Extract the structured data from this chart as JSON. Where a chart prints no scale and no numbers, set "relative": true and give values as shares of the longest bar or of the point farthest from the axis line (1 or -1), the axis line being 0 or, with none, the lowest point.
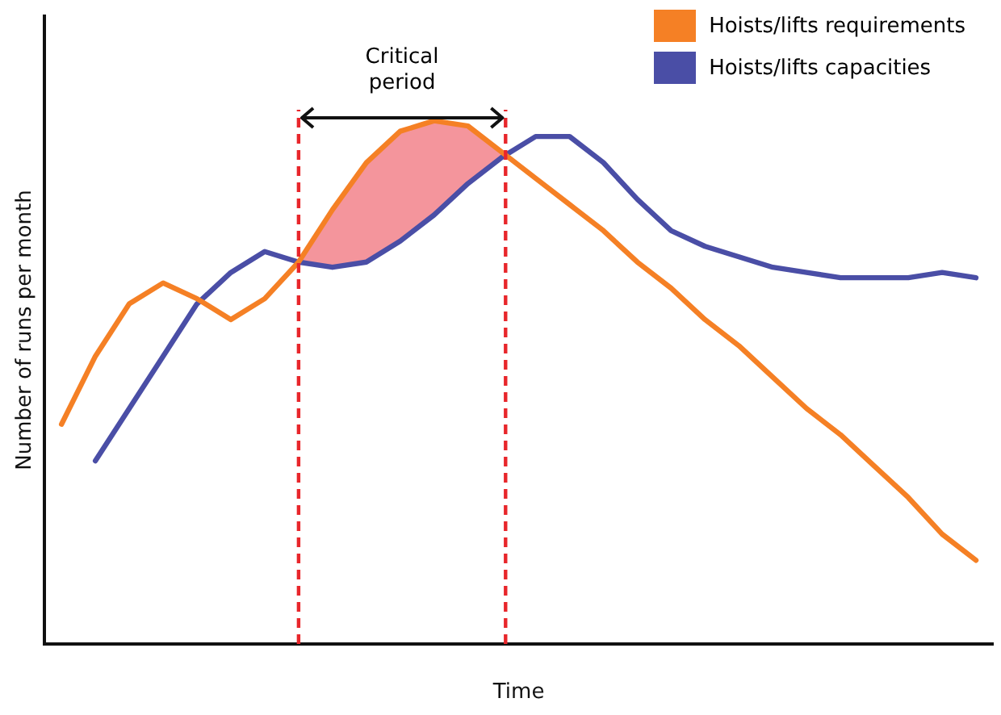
{
  "chart_data": {
    "type": "line",
    "relative": true,
    "xlabel": "Time",
    "ylabel": "Number of runs per month",
    "grid": false,
    "legend": "top right",
    "marker": "none",
    "line_style": "solid",
    "categories": [
      null,
      null,
      null,
      null,
      null,
      null,
      null,
      null,
      null,
      null,
      null,
      null,
      null,
      null,
      null,
      null,
      null,
      null,
      null,
      null,
      null,
      null,
      null,
      null,
      null,
      null,
      null,
      null
    ],
    "series": [
      {
        "name": "Hoists/lifts requirements",
        "color": "#f58025",
        "values": [
          0.42,
          0.55,
          0.65,
          0.69,
          0.66,
          0.62,
          0.66,
          0.73,
          0.83,
          0.92,
          0.98,
          1,
          0.99,
          0.94,
          0.89,
          0.84,
          0.79,
          0.73,
          0.68,
          0.62,
          0.57,
          0.51,
          0.45,
          0.4,
          0.34,
          0.28,
          0.21,
          0.16
        ]
      },
      {
        "name": "Hoists/lifts capacities",
        "color": "#4a4ea6",
        "values": [
          null,
          0.35,
          0.45,
          0.55,
          0.65,
          0.71,
          0.75,
          0.73,
          0.72,
          0.73,
          0.77,
          0.82,
          0.88,
          0.93,
          0.97,
          0.97,
          0.92,
          0.85,
          0.79,
          0.76,
          0.74,
          0.72,
          0.71,
          0.7,
          0.7,
          0.7,
          0.71,
          0.7
        ]
      }
    ],
    "annotations": [
      "Critical period"
    ]
  }
}
